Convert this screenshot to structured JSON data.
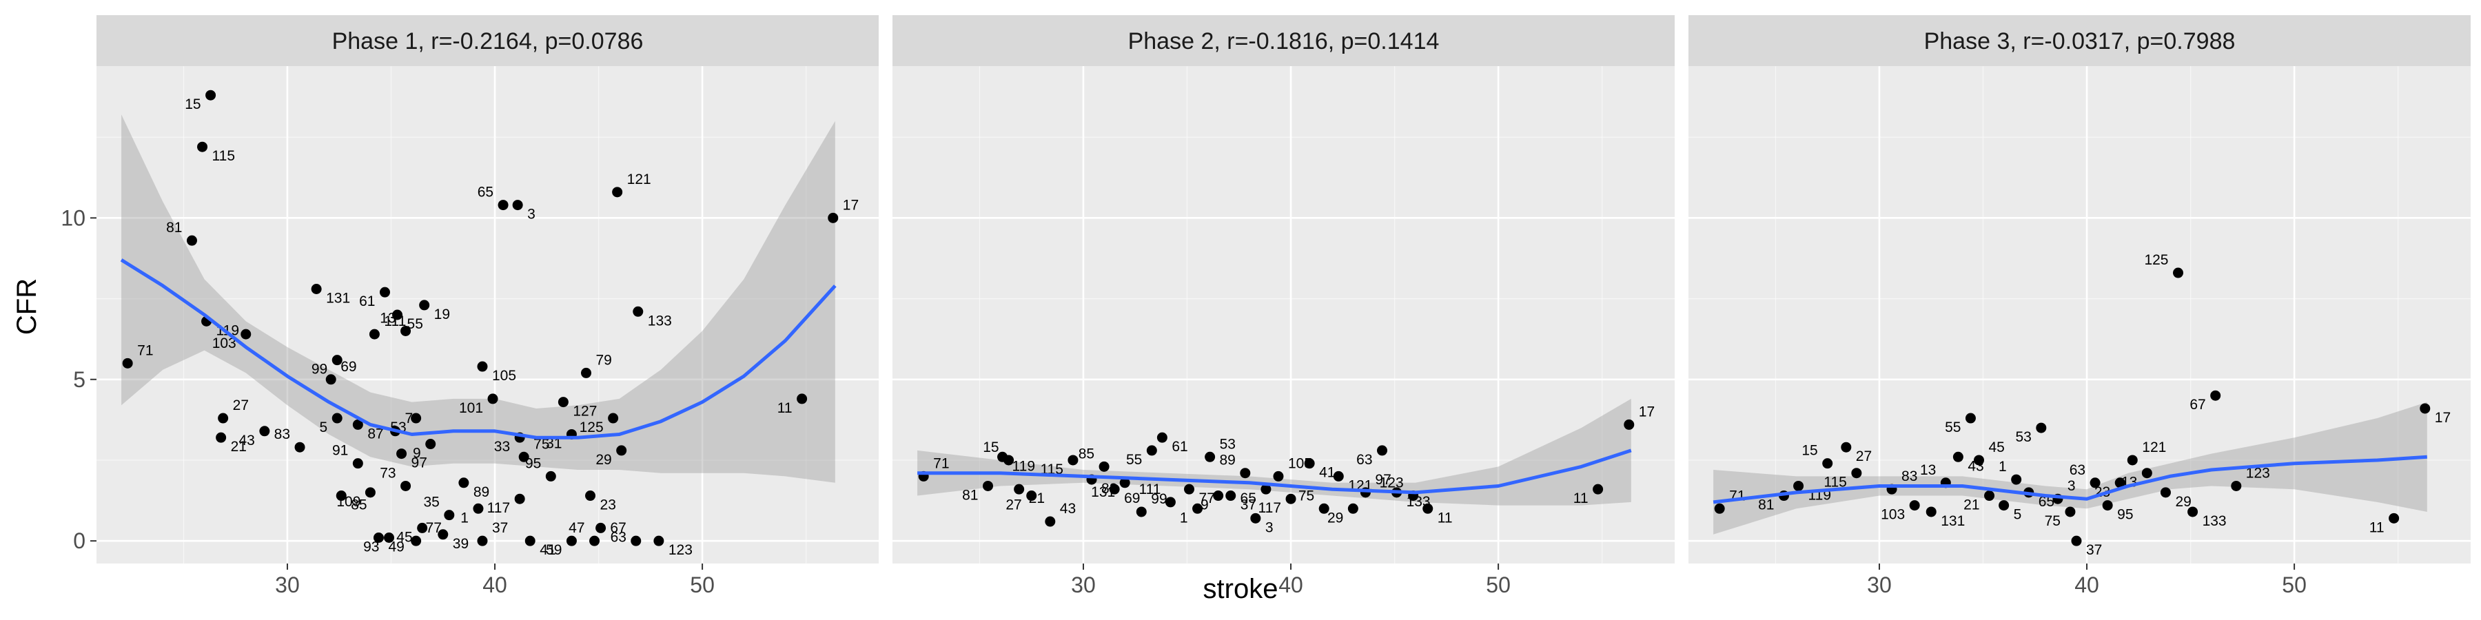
{
  "chart_data": {
    "type": "scatter",
    "xlabel": "stroke",
    "ylabel": "CFR",
    "x_ticks": [
      30,
      40,
      50
    ],
    "y_ticks": [
      0,
      5,
      10
    ],
    "xlim": [
      20.8,
      58.5
    ],
    "ylim": [
      -0.7,
      14.7
    ],
    "grid": true,
    "legend": "none",
    "colors": {
      "panel_bg": "#ebebeb",
      "grid_major": "#ffffff",
      "strip_bg": "#d9d9d9",
      "point": "#000000",
      "smooth_line": "#3366ff",
      "ribbon": "#999999"
    },
    "panels": [
      {
        "title": "Phase 1, r=-0.2164, p=0.0786",
        "points": [
          {
            "x": 22.3,
            "y": 5.5,
            "label": "71"
          },
          {
            "x": 26.3,
            "y": 13.8,
            "label": "15"
          },
          {
            "x": 25.9,
            "y": 12.2,
            "label": "115"
          },
          {
            "x": 25.4,
            "y": 9.3,
            "label": "81"
          },
          {
            "x": 26.1,
            "y": 6.8,
            "label": "119"
          },
          {
            "x": 28.0,
            "y": 6.4,
            "label": "103"
          },
          {
            "x": 26.9,
            "y": 3.8,
            "label": "27"
          },
          {
            "x": 28.9,
            "y": 3.4,
            "label": "43"
          },
          {
            "x": 26.8,
            "y": 3.2,
            "label": "21"
          },
          {
            "x": 30.6,
            "y": 2.9,
            "label": "83"
          },
          {
            "x": 31.4,
            "y": 7.8,
            "label": "131"
          },
          {
            "x": 32.4,
            "y": 5.6,
            "label": "99"
          },
          {
            "x": 32.1,
            "y": 5.0,
            "label": "69"
          },
          {
            "x": 32.4,
            "y": 3.8,
            "label": "5"
          },
          {
            "x": 33.4,
            "y": 3.6,
            "label": "87"
          },
          {
            "x": 33.4,
            "y": 2.4,
            "label": "91"
          },
          {
            "x": 32.6,
            "y": 1.4,
            "label": "85"
          },
          {
            "x": 34.0,
            "y": 1.5,
            "label": "109"
          },
          {
            "x": 34.2,
            "y": 6.4,
            "label": "111"
          },
          {
            "x": 34.7,
            "y": 7.7,
            "label": "61"
          },
          {
            "x": 35.3,
            "y": 7.0,
            "label": "55"
          },
          {
            "x": 35.7,
            "y": 6.5,
            "label": "13"
          },
          {
            "x": 36.6,
            "y": 7.3,
            "label": "19"
          },
          {
            "x": 36.2,
            "y": 3.8,
            "label": "53"
          },
          {
            "x": 35.2,
            "y": 3.4,
            "label": "7"
          },
          {
            "x": 36.9,
            "y": 3.0,
            "label": "9"
          },
          {
            "x": 35.5,
            "y": 2.7,
            "label": "97"
          },
          {
            "x": 35.7,
            "y": 1.7,
            "label": "73"
          },
          {
            "x": 34.4,
            "y": 0.1,
            "label": "49"
          },
          {
            "x": 34.9,
            "y": 0.1,
            "label": "93"
          },
          {
            "x": 36.2,
            "y": 0.0,
            "label": "77"
          },
          {
            "x": 36.5,
            "y": 0.4,
            "label": "45"
          },
          {
            "x": 37.5,
            "y": 0.2,
            "label": "39"
          },
          {
            "x": 37.8,
            "y": 0.8,
            "label": "35"
          },
          {
            "x": 38.5,
            "y": 1.8,
            "label": "89"
          },
          {
            "x": 39.2,
            "y": 1.0,
            "label": "1"
          },
          {
            "x": 39.4,
            "y": 0.0,
            "label": "37"
          },
          {
            "x": 39.9,
            "y": 4.4,
            "label": "101"
          },
          {
            "x": 39.4,
            "y": 5.4,
            "label": "105"
          },
          {
            "x": 40.4,
            "y": 10.4,
            "label": "65"
          },
          {
            "x": 41.1,
            "y": 10.4,
            "label": "3"
          },
          {
            "x": 41.2,
            "y": 3.2,
            "label": "33"
          },
          {
            "x": 41.4,
            "y": 2.6,
            "label": "75"
          },
          {
            "x": 41.2,
            "y": 1.3,
            "label": "117"
          },
          {
            "x": 41.7,
            "y": 0.0,
            "label": "41"
          },
          {
            "x": 42.7,
            "y": 2.0,
            "label": "95"
          },
          {
            "x": 43.3,
            "y": 4.3,
            "label": "127"
          },
          {
            "x": 43.7,
            "y": 3.3,
            "label": "31"
          },
          {
            "x": 44.4,
            "y": 5.2,
            "label": "79"
          },
          {
            "x": 43.7,
            "y": 0.0,
            "label": "59"
          },
          {
            "x": 44.6,
            "y": 1.4,
            "label": "23"
          },
          {
            "x": 44.8,
            "y": 0.0,
            "label": "47"
          },
          {
            "x": 45.1,
            "y": 0.4,
            "label": "63"
          },
          {
            "x": 45.7,
            "y": 3.8,
            "label": "125"
          },
          {
            "x": 45.9,
            "y": 10.8,
            "label": "121"
          },
          {
            "x": 46.1,
            "y": 2.8,
            "label": "29"
          },
          {
            "x": 46.9,
            "y": 7.1,
            "label": "133"
          },
          {
            "x": 46.8,
            "y": 0.0,
            "label": "67"
          },
          {
            "x": 47.9,
            "y": 0.0,
            "label": "123"
          },
          {
            "x": 54.8,
            "y": 4.4,
            "label": "11"
          },
          {
            "x": 56.3,
            "y": 10.0,
            "label": "17"
          }
        ],
        "smooth": {
          "x": [
            22,
            24,
            26,
            28,
            30,
            32,
            34,
            36,
            38,
            40,
            42,
            44,
            46,
            48,
            50,
            52,
            54,
            56.4
          ],
          "y": [
            8.7,
            7.9,
            7.0,
            6.0,
            5.1,
            4.3,
            3.6,
            3.3,
            3.4,
            3.4,
            3.2,
            3.2,
            3.3,
            3.7,
            4.3,
            5.1,
            6.2,
            7.9
          ],
          "lower": [
            4.2,
            5.3,
            5.9,
            5.2,
            4.2,
            3.3,
            2.6,
            2.3,
            2.4,
            2.4,
            2.3,
            2.2,
            2.2,
            2.1,
            2.1,
            2.1,
            2.0,
            1.8
          ],
          "upper": [
            13.2,
            10.5,
            8.1,
            6.8,
            6.0,
            5.3,
            4.6,
            4.3,
            4.4,
            4.4,
            4.1,
            4.2,
            4.4,
            5.3,
            6.5,
            8.1,
            10.4,
            13.0
          ]
        }
      },
      {
        "title": "Phase 2, r=-0.1816, p=0.1414",
        "points": [
          {
            "x": 22.3,
            "y": 2.0,
            "label": "71"
          },
          {
            "x": 25.4,
            "y": 1.7,
            "label": "81"
          },
          {
            "x": 26.1,
            "y": 2.6,
            "label": "119"
          },
          {
            "x": 26.4,
            "y": 2.5,
            "label": "15"
          },
          {
            "x": 26.9,
            "y": 1.6,
            "label": "21"
          },
          {
            "x": 27.5,
            "y": 1.4,
            "label": "27"
          },
          {
            "x": 28.4,
            "y": 0.6,
            "label": "43"
          },
          {
            "x": 29.5,
            "y": 2.5,
            "label": "115"
          },
          {
            "x": 30.4,
            "y": 1.9,
            "label": "83"
          },
          {
            "x": 31.0,
            "y": 2.3,
            "label": "85"
          },
          {
            "x": 31.5,
            "y": 1.6,
            "label": "69"
          },
          {
            "x": 32.0,
            "y": 1.8,
            "label": "131"
          },
          {
            "x": 32.8,
            "y": 0.9,
            "label": "99"
          },
          {
            "x": 33.3,
            "y": 2.8,
            "label": "55"
          },
          {
            "x": 33.8,
            "y": 3.2,
            "label": "61"
          },
          {
            "x": 34.2,
            "y": 1.2,
            "label": "111"
          },
          {
            "x": 35.1,
            "y": 1.6,
            "label": "77"
          },
          {
            "x": 35.5,
            "y": 1.0,
            "label": "1"
          },
          {
            "x": 36.1,
            "y": 2.6,
            "label": "53"
          },
          {
            "x": 36.5,
            "y": 1.4,
            "label": "9"
          },
          {
            "x": 37.1,
            "y": 1.4,
            "label": "37"
          },
          {
            "x": 37.8,
            "y": 2.1,
            "label": "89"
          },
          {
            "x": 38.3,
            "y": 0.7,
            "label": "3"
          },
          {
            "x": 38.8,
            "y": 1.6,
            "label": "65"
          },
          {
            "x": 39.4,
            "y": 2.0,
            "label": "105"
          },
          {
            "x": 40.0,
            "y": 1.3,
            "label": "117"
          },
          {
            "x": 40.9,
            "y": 2.4,
            "label": "41"
          },
          {
            "x": 41.6,
            "y": 1.0,
            "label": "75"
          },
          {
            "x": 42.3,
            "y": 2.0,
            "label": "121"
          },
          {
            "x": 43.0,
            "y": 1.0,
            "label": "29"
          },
          {
            "x": 43.6,
            "y": 1.5,
            "label": "97"
          },
          {
            "x": 44.4,
            "y": 2.8,
            "label": "63"
          },
          {
            "x": 45.1,
            "y": 1.5,
            "label": "133"
          },
          {
            "x": 45.9,
            "y": 1.4,
            "label": "123"
          },
          {
            "x": 46.6,
            "y": 1.0,
            "label": "11"
          },
          {
            "x": 54.8,
            "y": 1.6,
            "label": "11"
          },
          {
            "x": 56.3,
            "y": 3.6,
            "label": "17"
          }
        ],
        "smooth": {
          "x": [
            22,
            26,
            30,
            34,
            38,
            42,
            46,
            50,
            54,
            56.4
          ],
          "y": [
            2.1,
            2.1,
            2.0,
            1.9,
            1.8,
            1.6,
            1.5,
            1.7,
            2.3,
            2.8
          ],
          "lower": [
            1.4,
            1.7,
            1.8,
            1.7,
            1.6,
            1.4,
            1.2,
            1.1,
            1.1,
            1.2
          ],
          "upper": [
            2.8,
            2.5,
            2.2,
            2.1,
            2.0,
            1.8,
            1.8,
            2.3,
            3.5,
            4.4
          ]
        }
      },
      {
        "title": "Phase 3, r=-0.0317, p=0.7988",
        "points": [
          {
            "x": 22.3,
            "y": 1.0,
            "label": "71"
          },
          {
            "x": 25.4,
            "y": 1.4,
            "label": "81"
          },
          {
            "x": 26.1,
            "y": 1.7,
            "label": "119"
          },
          {
            "x": 27.5,
            "y": 2.4,
            "label": "15"
          },
          {
            "x": 28.4,
            "y": 2.9,
            "label": "27"
          },
          {
            "x": 28.9,
            "y": 2.1,
            "label": "115"
          },
          {
            "x": 30.6,
            "y": 1.6,
            "label": "83"
          },
          {
            "x": 31.7,
            "y": 1.1,
            "label": "103"
          },
          {
            "x": 32.5,
            "y": 0.9,
            "label": "131"
          },
          {
            "x": 33.2,
            "y": 1.8,
            "label": "13"
          },
          {
            "x": 33.8,
            "y": 2.6,
            "label": "43"
          },
          {
            "x": 34.4,
            "y": 3.8,
            "label": "55"
          },
          {
            "x": 34.8,
            "y": 2.5,
            "label": "45"
          },
          {
            "x": 35.3,
            "y": 1.4,
            "label": "21"
          },
          {
            "x": 36.0,
            "y": 1.1,
            "label": "5"
          },
          {
            "x": 36.6,
            "y": 1.9,
            "label": "1"
          },
          {
            "x": 37.2,
            "y": 1.5,
            "label": "65"
          },
          {
            "x": 37.8,
            "y": 3.5,
            "label": "53"
          },
          {
            "x": 38.6,
            "y": 1.3,
            "label": "3"
          },
          {
            "x": 39.2,
            "y": 0.9,
            "label": "75"
          },
          {
            "x": 39.5,
            "y": 0.0,
            "label": "37"
          },
          {
            "x": 40.4,
            "y": 1.8,
            "label": "63"
          },
          {
            "x": 41.0,
            "y": 1.1,
            "label": "95"
          },
          {
            "x": 41.6,
            "y": 1.8,
            "label": "23"
          },
          {
            "x": 42.2,
            "y": 2.5,
            "label": "121"
          },
          {
            "x": 42.9,
            "y": 2.1,
            "label": "13"
          },
          {
            "x": 43.8,
            "y": 1.5,
            "label": "29"
          },
          {
            "x": 44.4,
            "y": 8.3,
            "label": "125"
          },
          {
            "x": 45.1,
            "y": 0.9,
            "label": "133"
          },
          {
            "x": 46.2,
            "y": 4.5,
            "label": "67"
          },
          {
            "x": 47.2,
            "y": 1.7,
            "label": "123"
          },
          {
            "x": 54.8,
            "y": 0.7,
            "label": "11"
          },
          {
            "x": 56.3,
            "y": 4.1,
            "label": "17"
          }
        ],
        "smooth": {
          "x": [
            22,
            26,
            30,
            34,
            38,
            40,
            42,
            44,
            46,
            50,
            54,
            56.4
          ],
          "y": [
            1.2,
            1.5,
            1.7,
            1.7,
            1.4,
            1.3,
            1.7,
            2.0,
            2.2,
            2.4,
            2.5,
            2.6
          ],
          "lower": [
            0.2,
            1.0,
            1.4,
            1.4,
            1.1,
            1.0,
            1.3,
            1.6,
            1.7,
            1.6,
            1.2,
            0.9
          ],
          "upper": [
            2.2,
            2.0,
            2.0,
            2.0,
            1.7,
            1.6,
            2.1,
            2.4,
            2.7,
            3.2,
            3.8,
            4.3
          ]
        }
      }
    ]
  }
}
